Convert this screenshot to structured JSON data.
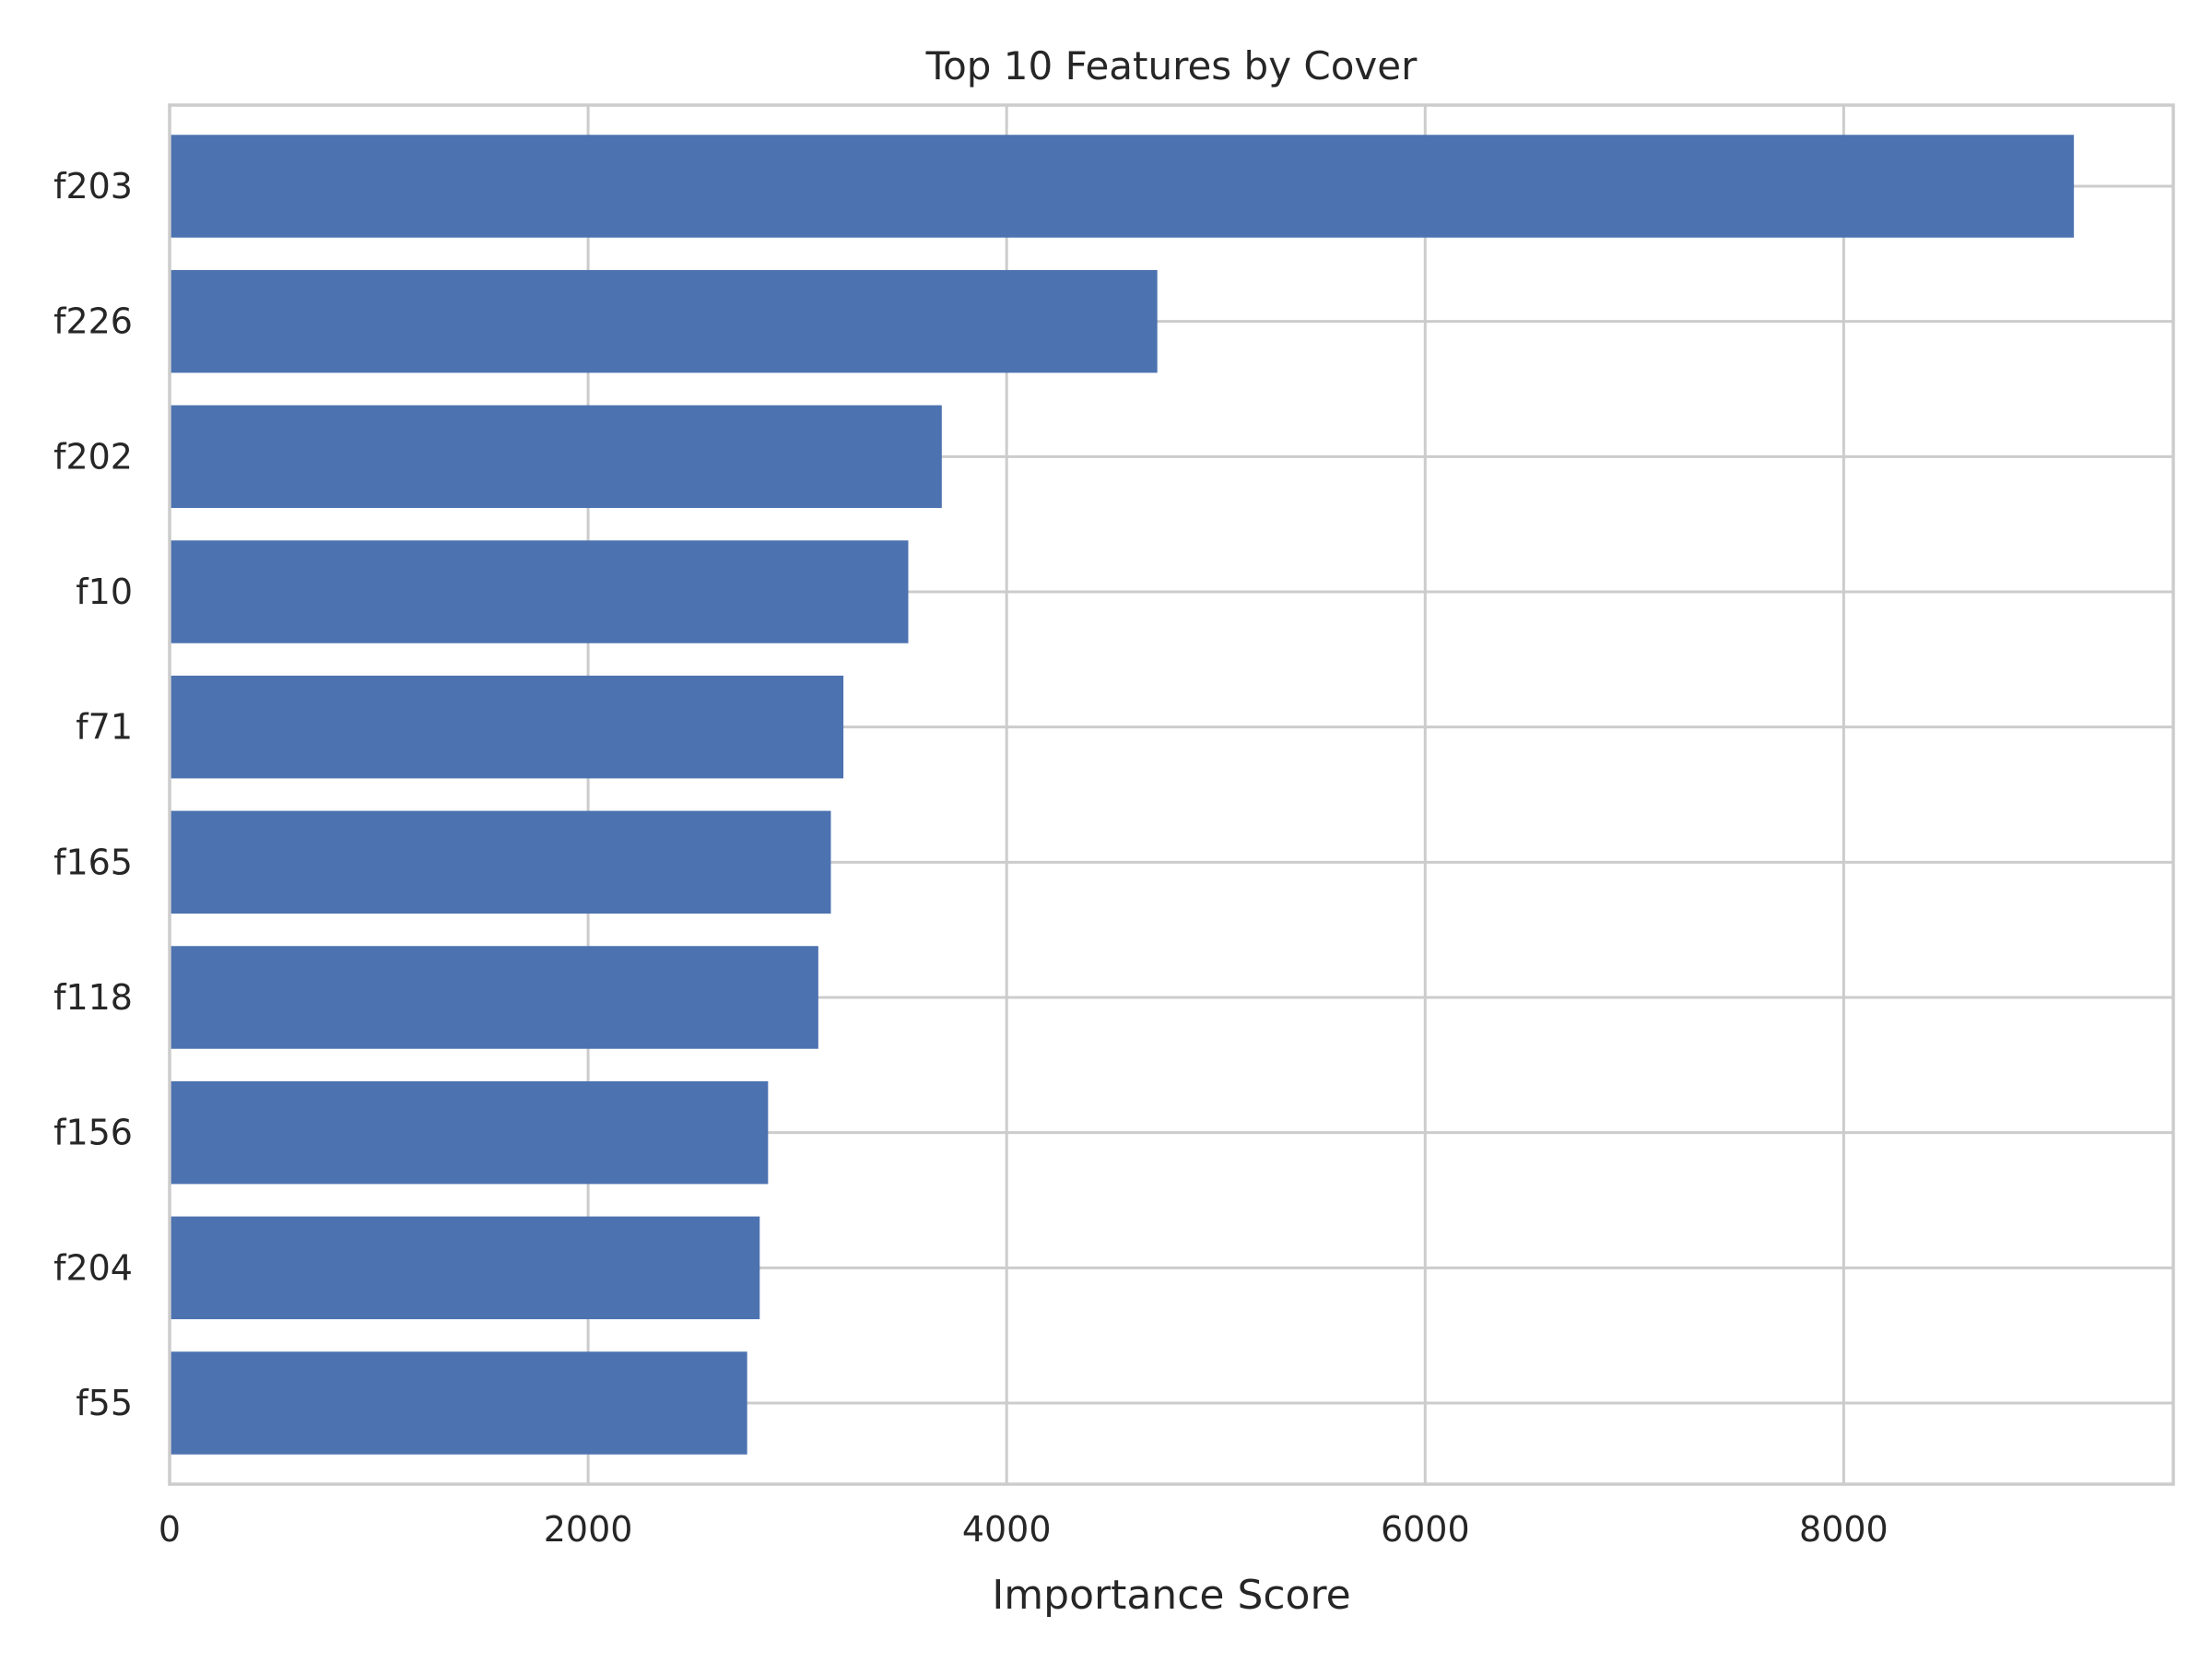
{
  "chart_data": {
    "type": "bar",
    "orientation": "horizontal",
    "title": "Top 10 Features by Cover",
    "xlabel": "Importance Score",
    "ylabel": "",
    "categories": [
      "f203",
      "f226",
      "f202",
      "f10",
      "f71",
      "f165",
      "f118",
      "f156",
      "f204",
      "f55"
    ],
    "values": [
      9100,
      4720,
      3690,
      3530,
      3220,
      3160,
      3100,
      2860,
      2820,
      2760
    ],
    "xlim": [
      0,
      9575
    ],
    "xticks": [
      0,
      2000,
      4000,
      6000,
      8000
    ],
    "grid": true,
    "bar_color": "#4c72b0",
    "grid_color": "#cccccc"
  }
}
